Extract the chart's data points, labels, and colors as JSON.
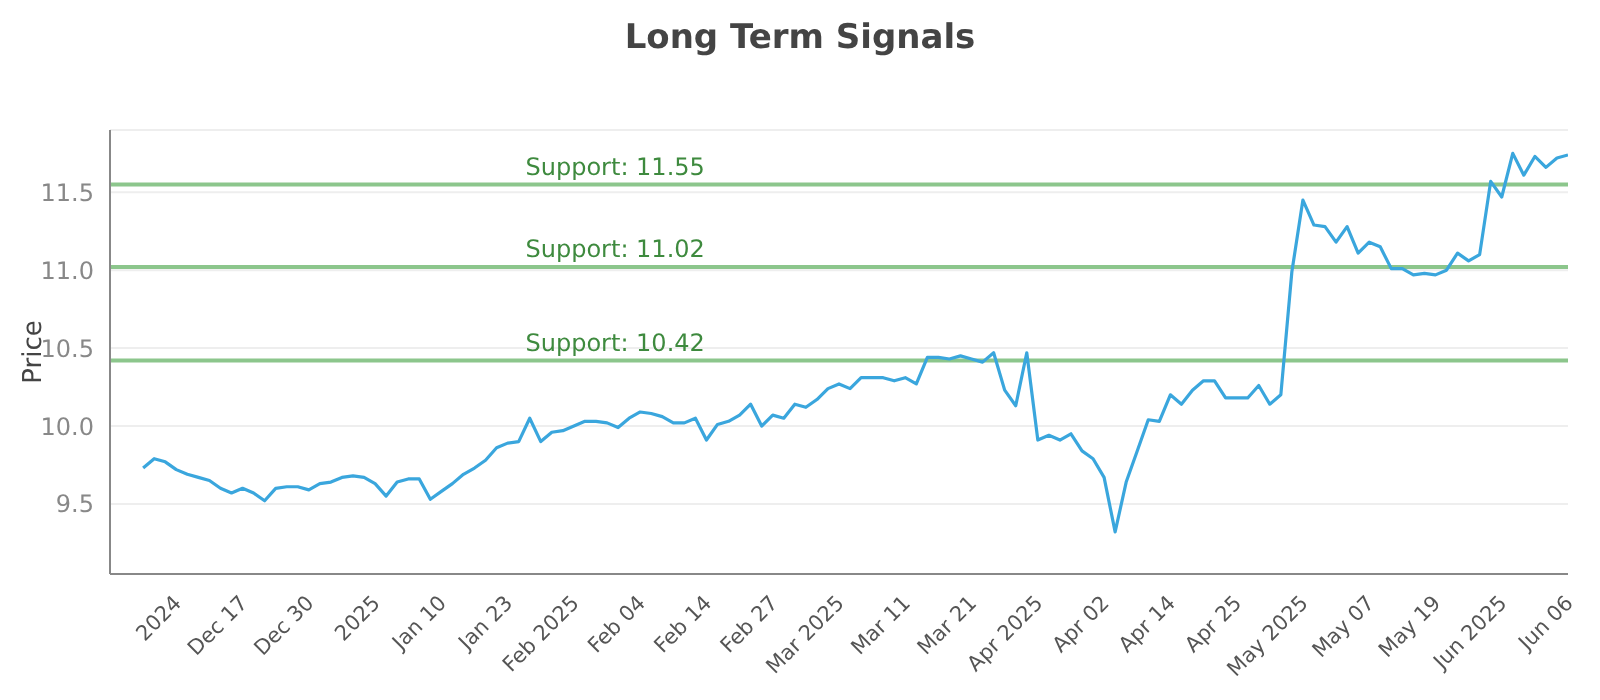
{
  "chart_data": {
    "type": "line",
    "title": "Long Term Signals",
    "ylabel": "Price",
    "categories": [
      null,
      null,
      null,
      null,
      null,
      null,
      "2024",
      null,
      null,
      null,
      null,
      null,
      "Dec 17",
      null,
      null,
      null,
      null,
      null,
      "Dec 30",
      null,
      null,
      null,
      null,
      null,
      "2025",
      null,
      null,
      null,
      null,
      null,
      "Jan 10",
      null,
      null,
      null,
      null,
      null,
      "Jan 23",
      null,
      null,
      null,
      null,
      null,
      "Feb 2025",
      null,
      null,
      null,
      null,
      null,
      "Feb 04",
      null,
      null,
      null,
      null,
      null,
      "Feb 14",
      null,
      null,
      null,
      null,
      null,
      "Feb 27",
      null,
      null,
      null,
      null,
      null,
      "Mar 2025",
      null,
      null,
      null,
      null,
      null,
      "Mar 11",
      null,
      null,
      null,
      null,
      null,
      "Mar 21",
      null,
      null,
      null,
      null,
      null,
      "Apr 2025",
      null,
      null,
      null,
      null,
      null,
      "Apr 02",
      null,
      null,
      null,
      null,
      null,
      "Apr 14",
      null,
      null,
      null,
      null,
      null,
      "Apr 25",
      null,
      null,
      null,
      null,
      null,
      "May 2025",
      null,
      null,
      null,
      null,
      null,
      "May 07",
      null,
      null,
      null,
      null,
      null,
      "May 19",
      null,
      null,
      null,
      null,
      null,
      "Jun 2025",
      null,
      null,
      null,
      null,
      null,
      "Jun 06"
    ],
    "series": [
      {
        "color": "#3aa6dd",
        "values": [
          null,
          null,
          null,
          9.73,
          9.79,
          9.77,
          9.72,
          9.69,
          9.67,
          9.65,
          9.6,
          9.57,
          9.6,
          9.57,
          9.52,
          9.6,
          9.61,
          9.61,
          9.59,
          9.63,
          9.64,
          9.67,
          9.68,
          9.67,
          9.63,
          9.55,
          9.64,
          9.66,
          9.66,
          9.53,
          9.58,
          9.63,
          9.69,
          9.73,
          9.78,
          9.86,
          9.89,
          9.9,
          10.05,
          9.9,
          9.96,
          9.97,
          10.0,
          10.03,
          10.03,
          10.02,
          9.99,
          10.05,
          10.09,
          10.08,
          10.06,
          10.02,
          10.02,
          10.05,
          9.91,
          10.01,
          10.03,
          10.07,
          10.14,
          10.0,
          10.07,
          10.05,
          10.14,
          10.12,
          10.17,
          10.24,
          10.27,
          10.24,
          10.31,
          10.31,
          10.31,
          10.29,
          10.31,
          10.27,
          10.44,
          10.44,
          10.43,
          10.45,
          10.43,
          10.41,
          10.47,
          10.23,
          10.13,
          10.47,
          9.91,
          9.94,
          9.91,
          9.95,
          9.84,
          9.79,
          9.67,
          9.32,
          9.64,
          9.84,
          10.04,
          10.03,
          10.2,
          10.14,
          10.23,
          10.29,
          10.29,
          10.18,
          10.18,
          10.18,
          10.26,
          10.14,
          10.2,
          10.99,
          11.45,
          11.29,
          11.28,
          11.18,
          11.28,
          11.11,
          11.18,
          11.15,
          11.01,
          11.01,
          10.97,
          10.98,
          10.97,
          11.0,
          11.11,
          11.06,
          11.1,
          11.57,
          11.47,
          11.75,
          11.61,
          11.73,
          11.66,
          11.72,
          11.74
        ]
      }
    ],
    "ylim": [
      9.05,
      11.9
    ],
    "yticks": [
      9.5,
      {
        "value": 10,
        "label": "10.0"
      },
      10.5,
      {
        "value": 11,
        "label": "11.0"
      },
      11.5
    ],
    "grid": "y",
    "legend": false,
    "marker": "none",
    "line_style": "solid",
    "ref_lines": [
      {
        "axis": "y",
        "value": 11.55,
        "label": "Support: 11.55",
        "color": "#8cc68c"
      },
      {
        "axis": "y",
        "value": 11.02,
        "label": "Support: 11.02",
        "color": "#8cc68c"
      },
      {
        "axis": "y",
        "value": 10.42,
        "label": "Support: 10.42",
        "color": "#8cc68c"
      }
    ]
  }
}
